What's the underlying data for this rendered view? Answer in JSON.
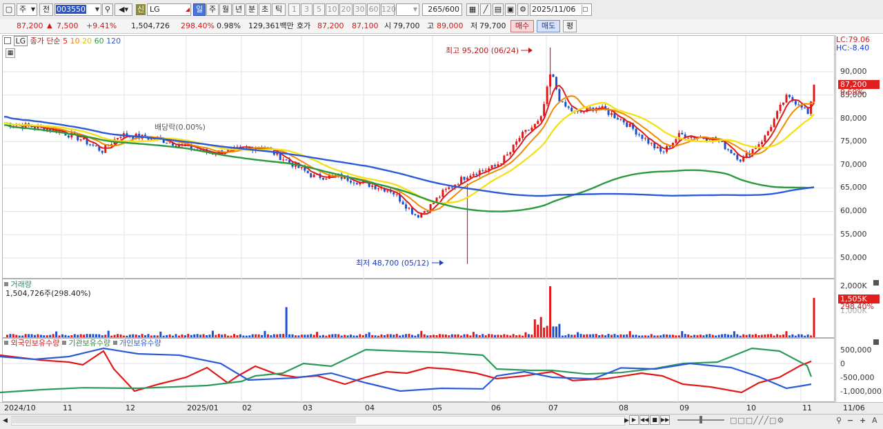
{
  "toolbar": {
    "market_sel": "주",
    "prev_label": "전",
    "code": "003550",
    "stock_badge": "신",
    "stock_name": "LG",
    "periods": [
      "일",
      "주",
      "월",
      "년",
      "분",
      "초",
      "틱"
    ],
    "nums": [
      "1",
      "3",
      "5",
      "10",
      "20",
      "30",
      "60",
      "120"
    ],
    "count": "265",
    "count_total": "/600",
    "date": "2025/11/06"
  },
  "status": {
    "price": "87,200",
    "up_arrow": "▲",
    "change": "7,500",
    "change_pct": "+9.41%",
    "volume": "1,504,726",
    "vol_ratio": "298.40%",
    "turnover": "0.98%",
    "amount": "129,361백만",
    "quote_label": "호가",
    "ask": "87,200",
    "bid": "87,100",
    "open_label": "시",
    "open": "79,700",
    "high_label": "고",
    "high": "89,000",
    "low_label": "저",
    "low": "79,700",
    "buy_label": "매수",
    "sell_label": "매도",
    "eval_label": "평"
  },
  "price_panel": {
    "ticker": "LG",
    "ma_title": "종가 단순",
    "ma_periods": [
      "5",
      "10",
      "20",
      "60",
      "120"
    ],
    "ma_colors": [
      "#e01818",
      "#f08a00",
      "#f5e11a",
      "#2a9a3c",
      "#2a5ad8"
    ],
    "lc": "LC:79.06",
    "hc": "HC:-8.40",
    "current_chip": "87,200",
    "current_pct": "9.69%",
    "high_note": "최고 95,200 (06/24)",
    "low_note": "최저 48,700 (05/12)",
    "dividend_note": "배당락(0.00%)",
    "y_labels": [
      "90,000",
      "85,000",
      "80,000",
      "75,000",
      "70,000",
      "65,000",
      "60,000",
      "55,000",
      "50,000"
    ]
  },
  "volume_panel": {
    "title": "거래량",
    "value": "1,504,726주(298.40%)",
    "chip": "1,505K",
    "chip_pct": "298.40%",
    "y_top": "2,000K",
    "y_mid": "1,000K"
  },
  "holdings_panel": {
    "legends": [
      "외국인보유수량",
      "기관보유수량",
      "개인보유수량"
    ],
    "colors": [
      "#e01818",
      "#2a9a5a",
      "#2a5ad8"
    ],
    "y_labels": [
      "500,000",
      "0",
      "-500,000",
      "-1,000,000"
    ]
  },
  "xaxis": {
    "labels": [
      "2024/10",
      "11",
      "12",
      "2025/01",
      "02",
      "03",
      "04",
      "05",
      "06",
      "07",
      "08",
      "09",
      "10",
      "11",
      "11/06"
    ]
  }
}
